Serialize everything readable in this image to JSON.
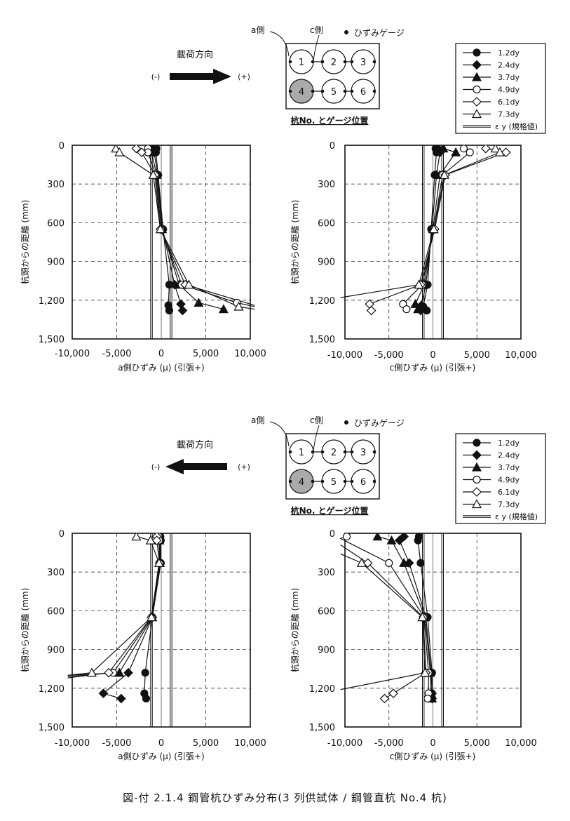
{
  "figure_caption": "図-付 2.1.4 鋼管杭ひずみ分布(3 列供試体 / 鋼管直杭 No.4 杭)",
  "panels": [
    {
      "load_direction_label": "載荷方向",
      "minus_label": "(-)",
      "plus_label": "(+)",
      "arrow_direction": "right",
      "schematic": {
        "a_side_label": "a側",
        "c_side_label": "c側",
        "gauge_label": "ひずみゲージ",
        "title": "杭No. とゲージ位置",
        "piles": [
          "1",
          "2",
          "3",
          "4",
          "5",
          "6"
        ],
        "highlighted_pile": "4"
      },
      "legend": [
        "1.2dy",
        "2.4dy",
        "3.7dy",
        "4.9dy",
        "6.1dy",
        "7.3dy"
      ],
      "legend_ey": "ε y (規格値)"
    },
    {
      "load_direction_label": "載荷方向",
      "minus_label": "(-)",
      "plus_label": "(+)",
      "arrow_direction": "left",
      "schematic": {
        "a_side_label": "a側",
        "c_side_label": "c側",
        "gauge_label": "ひずみゲージ",
        "title": "杭No. とゲージ位置",
        "piles": [
          "1",
          "2",
          "3",
          "4",
          "5",
          "6"
        ],
        "highlighted_pile": "4"
      },
      "legend": [
        "1.2dy",
        "2.4dy",
        "3.7dy",
        "4.9dy",
        "6.1dy",
        "7.3dy"
      ],
      "legend_ey": "ε y (規格値)"
    }
  ],
  "chart_data": [
    {
      "type": "line",
      "xlabel": "a側ひずみ (μ) (引張+)",
      "ylabel": "杭頭からの距離 (mm)",
      "xlim": [
        -10000,
        10000
      ],
      "ylim": [
        1500,
        0
      ],
      "xticks": [
        "-10,000",
        "-5,000",
        "0",
        "5,000",
        "10,000"
      ],
      "yticks": [
        "0",
        "300",
        "600",
        "900",
        "1,200",
        "1,500"
      ],
      "ey_lines": [
        -1100,
        1100
      ],
      "grid": "dashed",
      "series": [
        {
          "name": "1.2dy",
          "marker": "circle-filled",
          "points": [
            [
              -550,
              25
            ],
            [
              -600,
              55
            ],
            [
              -350,
              230
            ],
            [
              200,
              650
            ],
            [
              900,
              1080
            ],
            [
              800,
              1240
            ],
            [
              900,
              1280
            ]
          ]
        },
        {
          "name": "2.4dy",
          "marker": "diamond-filled",
          "points": [
            [
              -750,
              25
            ],
            [
              -800,
              55
            ],
            [
              -400,
              230
            ],
            [
              150,
              650
            ],
            [
              1500,
              1080
            ],
            [
              2200,
              1230
            ],
            [
              2400,
              1280
            ]
          ]
        },
        {
          "name": "3.7dy",
          "marker": "triangle-filled",
          "points": [
            [
              -1000,
              25
            ],
            [
              -1100,
              55
            ],
            [
              -500,
              230
            ],
            [
              100,
              650
            ],
            [
              2000,
              1080
            ],
            [
              4200,
              1220
            ],
            [
              7000,
              1270
            ]
          ]
        },
        {
          "name": "4.9dy",
          "marker": "circle-open",
          "points": [
            [
              -1500,
              25
            ],
            [
              -1500,
              55
            ],
            [
              -600,
              230
            ],
            [
              0,
              650
            ],
            [
              2300,
              1080
            ],
            [
              8500,
              1220
            ],
            [
              10500,
              1250
            ]
          ]
        },
        {
          "name": "6.1dy",
          "marker": "diamond-open",
          "points": [
            [
              -2800,
              25
            ],
            [
              -2200,
              55
            ],
            [
              -700,
              230
            ],
            [
              -100,
              650
            ],
            [
              2700,
              1080
            ],
            [
              10500,
              1240
            ]
          ]
        },
        {
          "name": "7.3dy",
          "marker": "triangle-open",
          "points": [
            [
              -5100,
              25
            ],
            [
              -4700,
              55
            ],
            [
              -900,
              230
            ],
            [
              -100,
              650
            ],
            [
              3100,
              1080
            ],
            [
              8700,
              1250
            ],
            [
              10500,
              1270
            ]
          ]
        }
      ]
    },
    {
      "type": "line",
      "xlabel": "c側ひずみ (μ) (引張+)",
      "ylabel": "杭頭からの距離 (mm)",
      "xlim": [
        -10000,
        10000
      ],
      "ylim": [
        1500,
        0
      ],
      "xticks": [
        "-10,000",
        "-5,000",
        "0",
        "5,000",
        "10,000"
      ],
      "yticks": [
        "0",
        "300",
        "600",
        "900",
        "1,200",
        "1,500"
      ],
      "ey_lines": [
        -1100,
        1100
      ],
      "grid": "dashed",
      "series": [
        {
          "name": "1.2dy",
          "marker": "circle-filled",
          "points": [
            [
              300,
              25
            ],
            [
              400,
              55
            ],
            [
              200,
              230
            ],
            [
              -200,
              650
            ],
            [
              -600,
              1080
            ],
            [
              -1100,
              1250
            ],
            [
              -700,
              1280
            ]
          ]
        },
        {
          "name": "2.4dy",
          "marker": "diamond-filled",
          "points": [
            [
              600,
              25
            ],
            [
              800,
              55
            ],
            [
              400,
              230
            ],
            [
              -100,
              650
            ],
            [
              -800,
              1080
            ],
            [
              -1300,
              1240
            ],
            [
              -1400,
              1280
            ]
          ]
        },
        {
          "name": "3.7dy",
          "marker": "triangle-filled",
          "points": [
            [
              1200,
              25
            ],
            [
              2600,
              55
            ],
            [
              800,
              230
            ],
            [
              0,
              650
            ],
            [
              -1000,
              1080
            ],
            [
              -2000,
              1230
            ],
            [
              -1700,
              1270
            ]
          ]
        },
        {
          "name": "4.9dy",
          "marker": "circle-open",
          "points": [
            [
              3500,
              25
            ],
            [
              4200,
              55
            ],
            [
              1100,
              230
            ],
            [
              100,
              650
            ],
            [
              -1200,
              1080
            ],
            [
              -3400,
              1230
            ],
            [
              -3000,
              1270
            ]
          ]
        },
        {
          "name": "6.1dy",
          "marker": "diamond-open",
          "points": [
            [
              6000,
              25
            ],
            [
              8300,
              55
            ],
            [
              1400,
              230
            ],
            [
              200,
              650
            ],
            [
              -1400,
              1080
            ],
            [
              -7200,
              1230
            ],
            [
              -7000,
              1280
            ]
          ]
        },
        {
          "name": "7.3dy",
          "marker": "triangle-open",
          "points": [
            [
              7100,
              25
            ],
            [
              7600,
              55
            ],
            [
              1300,
              230
            ],
            [
              100,
              650
            ],
            [
              -1600,
              1080
            ],
            [
              -10500,
              1180
            ]
          ]
        }
      ]
    },
    {
      "type": "line",
      "xlabel": "a側ひずみ (μ) (引張+)",
      "ylabel": "杭頭からの距離 (mm)",
      "xlim": [
        -10000,
        10000
      ],
      "ylim": [
        1500,
        0
      ],
      "xticks": [
        "-10,000",
        "-5,000",
        "0",
        "5,000",
        "10,000"
      ],
      "yticks": [
        "0",
        "300",
        "600",
        "900",
        "1,200",
        "1,500"
      ],
      "ey_lines": [
        -1100,
        1100
      ],
      "grid": "dashed",
      "series": [
        {
          "name": "1.2dy",
          "marker": "circle-filled",
          "points": [
            [
              -100,
              25
            ],
            [
              -50,
              55
            ],
            [
              -50,
              230
            ],
            [
              -1000,
              650
            ],
            [
              -1800,
              1080
            ],
            [
              -1900,
              1240
            ],
            [
              -1700,
              1280
            ]
          ]
        },
        {
          "name": "2.4dy",
          "marker": "diamond-filled",
          "points": [
            [
              -200,
              25
            ],
            [
              -150,
              55
            ],
            [
              -100,
              230
            ],
            [
              -1000,
              650
            ],
            [
              -3700,
              1080
            ],
            [
              -6500,
              1240
            ],
            [
              -4500,
              1280
            ]
          ]
        },
        {
          "name": "3.7dy",
          "marker": "triangle-filled",
          "points": [
            [
              -250,
              25
            ],
            [
              -200,
              55
            ],
            [
              -150,
              230
            ],
            [
              -1000,
              650
            ],
            [
              -4700,
              1080
            ],
            [
              -10500,
              1100
            ]
          ]
        },
        {
          "name": "4.9dy",
          "marker": "circle-open",
          "points": [
            [
              -300,
              25
            ],
            [
              -250,
              55
            ],
            [
              -200,
              230
            ],
            [
              -1050,
              650
            ],
            [
              -5400,
              1080
            ],
            [
              -10500,
              1110
            ]
          ]
        },
        {
          "name": "6.1dy",
          "marker": "diamond-open",
          "points": [
            [
              -500,
              25
            ],
            [
              -500,
              55
            ],
            [
              -200,
              230
            ],
            [
              -1100,
              650
            ],
            [
              -5900,
              1080
            ],
            [
              -10500,
              1120
            ]
          ]
        },
        {
          "name": "7.3dy",
          "marker": "triangle-open",
          "points": [
            [
              -2800,
              25
            ],
            [
              -1200,
              55
            ],
            [
              -250,
              230
            ],
            [
              -1100,
              650
            ],
            [
              -7800,
              1080
            ],
            [
              -10500,
              1100
            ]
          ]
        }
      ]
    },
    {
      "type": "line",
      "xlabel": "c側ひずみ (μ) (引張+)",
      "ylabel": "杭頭からの距離 (mm)",
      "xlim": [
        -10000,
        10000
      ],
      "ylim": [
        1500,
        0
      ],
      "xticks": [
        "-10,000",
        "-5,000",
        "0",
        "5,000",
        "10,000"
      ],
      "yticks": [
        "0",
        "300",
        "600",
        "900",
        "1,200",
        "1,500"
      ],
      "ey_lines": [
        -1100,
        1100
      ],
      "grid": "dashed",
      "series": [
        {
          "name": "1.2dy",
          "marker": "circle-filled",
          "points": [
            [
              -1600,
              25
            ],
            [
              -1700,
              55
            ],
            [
              -1400,
              230
            ],
            [
              -600,
              650
            ],
            [
              -100,
              1080
            ],
            [
              -100,
              1240
            ],
            [
              -100,
              1280
            ]
          ]
        },
        {
          "name": "2.4dy",
          "marker": "diamond-filled",
          "points": [
            [
              -3300,
              25
            ],
            [
              -3800,
              55
            ],
            [
              -2700,
              230
            ],
            [
              -800,
              650
            ],
            [
              -200,
              1080
            ],
            [
              -100,
              1240
            ],
            [
              -100,
              1280
            ]
          ]
        },
        {
          "name": "3.7dy",
          "marker": "triangle-filled",
          "points": [
            [
              -6300,
              25
            ],
            [
              -4700,
              55
            ],
            [
              -3300,
              230
            ],
            [
              -900,
              650
            ],
            [
              -300,
              1080
            ],
            [
              -200,
              1240
            ],
            [
              -100,
              1280
            ]
          ]
        },
        {
          "name": "4.9dy",
          "marker": "circle-open",
          "points": [
            [
              -9800,
              25
            ],
            [
              -10500,
              40
            ],
            [
              -5000,
              230
            ],
            [
              -1000,
              650
            ],
            [
              -500,
              1080
            ],
            [
              -500,
              1240
            ],
            [
              -600,
              1280
            ]
          ]
        },
        {
          "name": "6.1dy",
          "marker": "diamond-open",
          "points": [
            [
              -10500,
              90
            ],
            [
              -7400,
              230
            ],
            [
              -1100,
              650
            ],
            [
              -800,
              1080
            ],
            [
              -4500,
              1240
            ],
            [
              -5500,
              1280
            ]
          ]
        },
        {
          "name": "7.3dy",
          "marker": "triangle-open",
          "points": [
            [
              -10500,
              160
            ],
            [
              -8100,
              230
            ],
            [
              -1200,
              650
            ],
            [
              -900,
              1080
            ],
            [
              -10500,
              1210
            ]
          ]
        }
      ]
    }
  ]
}
